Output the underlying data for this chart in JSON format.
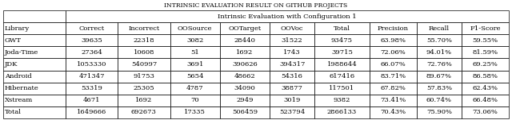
{
  "title": "INTRINSIC EVALUATION RESULT ON GITHUB PROJECTS",
  "subtitle": "Intrinsic Evaluation with Configuration 1",
  "columns": [
    "Library",
    "Correct",
    "Incorrect",
    "OOSource",
    "OOTarget",
    "OOVoc",
    "Total",
    "Precision",
    "Recall",
    "F1-Score"
  ],
  "rows": [
    [
      "GWT",
      "39635",
      "22318",
      "3082",
      "28440",
      "31522",
      "93475",
      "63.98%",
      "55.70%",
      "59.55%"
    ],
    [
      "Joda-Time",
      "27364",
      "10608",
      "51",
      "1692",
      "1743",
      "39715",
      "72.06%",
      "94.01%",
      "81.59%"
    ],
    [
      "JDK",
      "1053330",
      "540997",
      "3691",
      "390626",
      "394317",
      "1988644",
      "66.07%",
      "72.76%",
      "69.25%"
    ],
    [
      "Android",
      "471347",
      "91753",
      "5654",
      "48662",
      "54316",
      "617416",
      "83.71%",
      "89.67%",
      "86.58%"
    ],
    [
      "Hibernate",
      "53319",
      "25305",
      "4787",
      "34090",
      "38877",
      "117501",
      "67.82%",
      "57.83%",
      "62.43%"
    ],
    [
      "Xstream",
      "4671",
      "1692",
      "70",
      "2949",
      "3019",
      "9382",
      "73.41%",
      "60.74%",
      "66.48%"
    ],
    [
      "Total",
      "1649666",
      "692673",
      "17335",
      "506459",
      "523794",
      "2866133",
      "70.43%",
      "75.90%",
      "73.06%"
    ]
  ],
  "col_widths_rel": [
    1.25,
    1.05,
    1.05,
    1.0,
    1.0,
    0.9,
    1.1,
    0.95,
    0.9,
    0.95
  ],
  "bg_color": "#ffffff",
  "title_fontsize": 5.5,
  "table_fontsize": 6.0,
  "figwidth": 6.4,
  "figheight": 1.51
}
